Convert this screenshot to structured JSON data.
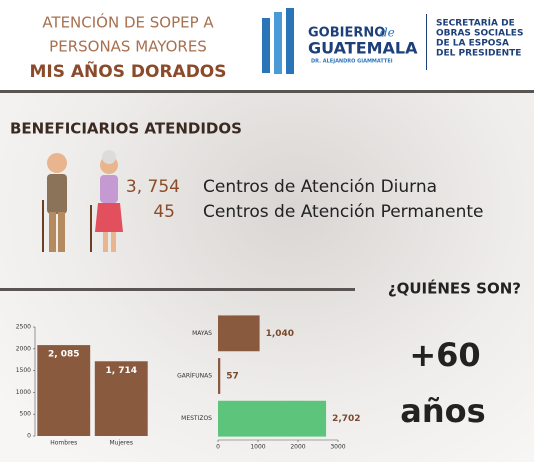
{
  "header": {
    "title_lines": [
      "ATENCIÓN DE SOPEP A",
      "PERSONAS MAYORES"
    ],
    "subtitle": "MIS AÑOS DORADOS",
    "logo": {
      "word1": "GOBIERNO",
      "word2": "de",
      "word3": "GUATEMALA",
      "tagline": "DR. ALEJANDRO GIAMMATTEI",
      "secretaria": [
        "SECRETARÍA DE",
        "OBRAS SOCIALES",
        "DE LA ESPOSA",
        "DEL PRESIDENTE"
      ]
    }
  },
  "beneficiarios": {
    "heading": "BENEFICIARIOS ATENDIDOS",
    "items": [
      {
        "number": "3, 754",
        "label": "Centros de Atención Diurna"
      },
      {
        "number": "45",
        "label": "Centros de Atención Permanente"
      }
    ]
  },
  "quienes": {
    "heading": "¿QUIÉNES SON?",
    "age": "+60",
    "age_unit": "años"
  },
  "chart_data": [
    {
      "type": "bar",
      "categories": [
        "Hombres",
        "Mujeres"
      ],
      "values": [
        2085,
        1714
      ],
      "value_labels": [
        "2, 085",
        "1, 714"
      ],
      "color": "#8a5a3f",
      "ylim": [
        0,
        2500
      ],
      "yticks": [
        0,
        500,
        1000,
        1500,
        2000,
        2500
      ]
    },
    {
      "type": "barh",
      "categories": [
        "MAYAS",
        "GARÍFUNAS",
        "MESTIZOS"
      ],
      "values": [
        1040,
        57,
        2702
      ],
      "value_labels": [
        "1,040",
        "57",
        "2,702"
      ],
      "colors": [
        "#8a5a3f",
        "#8a5a3f",
        "#5dc47c"
      ],
      "xlim": [
        0,
        3000
      ],
      "xticks": [
        0,
        1000,
        2000,
        3000
      ]
    }
  ]
}
